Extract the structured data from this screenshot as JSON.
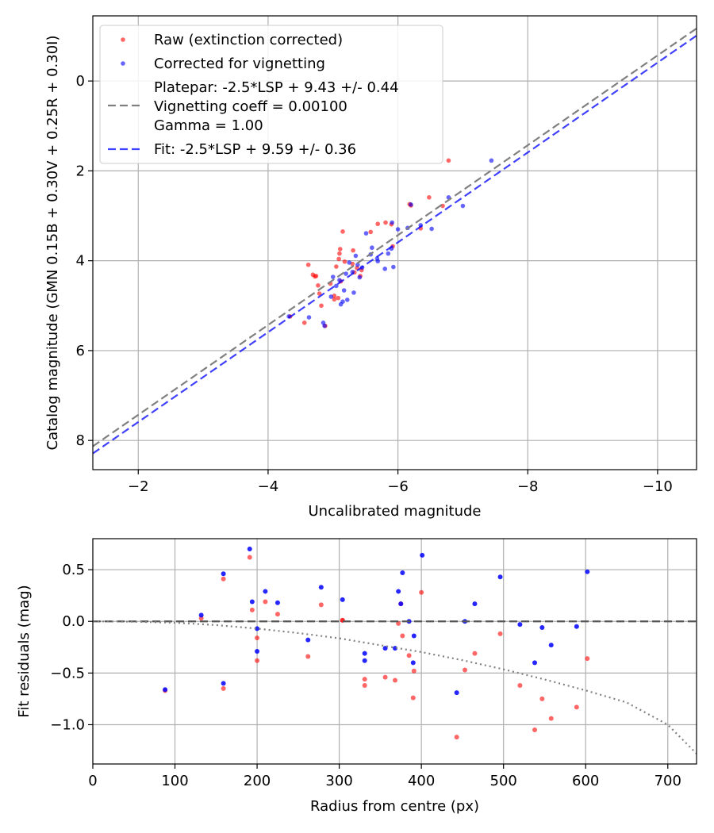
{
  "chart_data": [
    {
      "type": "scatter",
      "xlabel": "Uncalibrated magnitude",
      "ylabel": "Catalog magnitude (GMN 0.15B + 0.30V + 0.25R + 0.30I)",
      "xlim": [
        -1.3,
        -10.6
      ],
      "ylim": [
        8.65,
        -1.45
      ],
      "x_inverted": true,
      "y_inverted": true,
      "grid": true,
      "xticks": [
        -2,
        -4,
        -6,
        -8,
        -10
      ],
      "xtick_labels": [
        "−2",
        "−4",
        "−6",
        "−8",
        "−10"
      ],
      "yticks": [
        0,
        2,
        4,
        6,
        8
      ],
      "ytick_labels": [
        "0",
        "2",
        "4",
        "6",
        "8"
      ],
      "legend_location": "top-left",
      "colors": {
        "raw": "#ff0000",
        "corrected": "#0000ff",
        "platepar": "#808080",
        "fit": "#0000ff"
      },
      "series": [
        {
          "name": "Raw (extinction corrected)",
          "kind": "scatter",
          "x": [
            -4.34,
            -4.56,
            -4.62,
            -4.69,
            -4.72,
            -4.74,
            -4.77,
            -4.79,
            -4.82,
            -4.88,
            -4.96,
            -5.02,
            -5.02,
            -5.05,
            -5.08,
            -5.09,
            -5.1,
            -5.11,
            -5.12,
            -5.15,
            -5.18,
            -5.3,
            -5.31,
            -5.33,
            -5.37,
            -5.42,
            -5.44,
            -5.58,
            -5.69,
            -5.81,
            -5.9,
            -5.92,
            -6.18,
            -6.2,
            -6.35,
            -6.48,
            -6.69,
            -6.78
          ],
          "y": [
            5.24,
            5.38,
            4.09,
            4.31,
            4.35,
            4.34,
            4.55,
            4.73,
            5.0,
            5.45,
            4.51,
            4.78,
            4.86,
            4.13,
            4.83,
            3.96,
            3.84,
            3.74,
            4.46,
            3.35,
            4.02,
            4.07,
            3.77,
            4.26,
            4.16,
            4.34,
            4.21,
            3.36,
            3.18,
            3.15,
            3.19,
            3.68,
            2.74,
            2.77,
            3.28,
            2.59,
            2.78,
            1.77
          ]
        },
        {
          "name": "Corrected for vignetting",
          "kind": "scatter",
          "x": [
            -4.32,
            -4.63,
            -4.87,
            -4.85,
            -5.0,
            -4.97,
            -5.05,
            -5.12,
            -5.22,
            -5.32,
            -5.41,
            -5.15,
            -5.1,
            -5.17,
            -5.2,
            -5.3,
            -5.38,
            -5.51,
            -5.58,
            -5.6,
            -5.69,
            -5.8,
            -5.85,
            -5.91,
            -5.9,
            -5.93,
            -6.0,
            -6.15,
            -6.2,
            -6.35,
            -6.52,
            -6.78,
            -7.0,
            -7.44,
            -5.25,
            -5.45,
            -5.68,
            -5.35
          ],
          "y": [
            5.24,
            5.26,
            5.45,
            5.38,
            4.36,
            4.8,
            4.56,
            4.97,
            4.87,
            4.71,
            4.37,
            4.91,
            4.43,
            4.66,
            4.29,
            4.25,
            4.09,
            3.39,
            3.86,
            3.71,
            4.01,
            4.18,
            3.84,
            3.15,
            3.73,
            4.14,
            3.3,
            3.27,
            2.75,
            3.21,
            3.29,
            2.59,
            2.78,
            1.77,
            4.04,
            4.15,
            3.95,
            3.89
          ]
        },
        {
          "name": "Platepar: -2.5*LSP + 9.43 +/- 0.44\nVignetting coeff = 0.00100\nGamma = 1.00",
          "kind": "line",
          "style": "dashed",
          "x": [
            -1.3,
            -10.6
          ],
          "y": [
            8.13,
            -1.17
          ]
        },
        {
          "name": "Fit: -2.5*LSP + 9.59 +/- 0.36",
          "kind": "line",
          "style": "dashed",
          "x": [
            -1.3,
            -10.6
          ],
          "y": [
            8.29,
            -1.01
          ]
        }
      ]
    },
    {
      "type": "scatter",
      "xlabel": "Radius from centre (px)",
      "ylabel": "Fit residuals (mag)",
      "xlim": [
        0,
        735
      ],
      "ylim": [
        -1.38,
        0.8
      ],
      "grid": true,
      "xticks": [
        0,
        100,
        200,
        300,
        400,
        500,
        600,
        700
      ],
      "xtick_labels": [
        "0",
        "100",
        "200",
        "300",
        "400",
        "500",
        "600",
        "700"
      ],
      "yticks": [
        0.5,
        0.0,
        -0.5,
        -1.0
      ],
      "ytick_labels": [
        "0.5",
        "0.0",
        "−0.5",
        "−1.0"
      ],
      "series": [
        {
          "name": "Raw residuals",
          "kind": "scatter",
          "color": "#ff0000",
          "x": [
            88,
            132,
            159,
            159,
            191,
            194,
            200,
            200,
            210,
            225,
            262,
            278,
            304,
            304,
            331,
            331,
            356,
            368,
            372,
            375,
            377,
            385,
            390,
            391,
            400,
            443,
            453,
            465,
            496,
            520,
            547,
            558,
            589,
            602,
            538
          ],
          "y": [
            -0.67,
            0.03,
            0.41,
            -0.65,
            0.62,
            0.11,
            -0.16,
            -0.38,
            0.19,
            0.07,
            -0.34,
            0.16,
            0.01,
            0.01,
            -0.56,
            -0.62,
            -0.54,
            -0.57,
            -0.02,
            0.17,
            -0.14,
            -0.33,
            -0.74,
            -0.48,
            0.28,
            -1.12,
            -0.47,
            -0.31,
            -0.12,
            -0.62,
            -0.75,
            -0.94,
            -0.83,
            -0.36,
            -1.05
          ]
        },
        {
          "name": "Corrected residuals",
          "kind": "scatter",
          "color": "#0000ff",
          "x": [
            88,
            132,
            159,
            159,
            191,
            194,
            200,
            200,
            210,
            225,
            262,
            278,
            304,
            331,
            331,
            356,
            368,
            372,
            375,
            377,
            385,
            390,
            391,
            401,
            443,
            453,
            465,
            496,
            520,
            547,
            558,
            589,
            602,
            538
          ],
          "y": [
            -0.66,
            0.06,
            0.46,
            -0.6,
            0.7,
            0.19,
            -0.07,
            -0.29,
            0.29,
            0.18,
            -0.18,
            0.33,
            0.21,
            -0.31,
            -0.38,
            -0.26,
            -0.26,
            0.29,
            0.17,
            0.47,
            0.0,
            -0.4,
            -0.14,
            0.64,
            -0.69,
            0.0,
            0.17,
            0.43,
            -0.03,
            -0.06,
            -0.23,
            -0.05,
            0.48,
            -0.4
          ]
        },
        {
          "name": "Zero line",
          "kind": "hline",
          "style": "dashed",
          "color": "#555555",
          "y": 0.0
        },
        {
          "name": "Vignetting model",
          "kind": "curve",
          "style": "dotted",
          "color": "#808080",
          "x": [
            0,
            50,
            100,
            150,
            200,
            250,
            300,
            350,
            400,
            450,
            500,
            550,
            600,
            650,
            700,
            735
          ],
          "y": [
            0.0,
            -0.003,
            -0.013,
            -0.036,
            -0.07,
            -0.113,
            -0.164,
            -0.231,
            -0.297,
            -0.376,
            -0.464,
            -0.562,
            -0.668,
            -0.785,
            -1.0,
            -1.28
          ]
        }
      ]
    }
  ]
}
